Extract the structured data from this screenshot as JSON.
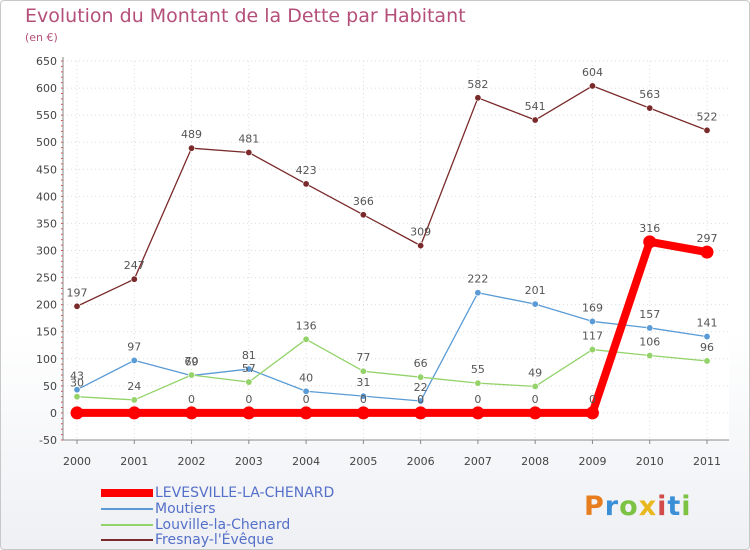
{
  "title": "Evolution du Montant de la Dette par Habitant",
  "unit_label": "(en €)",
  "logo_text": "Proxiti",
  "logo_colors": [
    "#e87d1e",
    "#3b8fd6",
    "#7cc243",
    "#e8b81e",
    "#d14b4b",
    "#3b8fd6",
    "#7cc243"
  ],
  "chart_data": {
    "type": "line",
    "title": "Evolution du Montant de la Dette par Habitant",
    "ylabel": "(en €)",
    "x": [
      "2000",
      "2001",
      "2002",
      "2003",
      "2004",
      "2005",
      "2006",
      "2007",
      "2008",
      "2009",
      "2010",
      "2011"
    ],
    "ylim": [
      -50,
      650
    ],
    "yticks": [
      -50,
      0,
      50,
      100,
      150,
      200,
      250,
      300,
      350,
      400,
      450,
      500,
      550,
      600,
      650
    ],
    "grid": true,
    "legend_position": "bottom-left",
    "series": [
      {
        "name": "LEVESVILLE-LA-CHENARD",
        "color": "#ff0000",
        "emphasis": true,
        "values": [
          0,
          0,
          0,
          0,
          0,
          0,
          0,
          0,
          0,
          0,
          316,
          297
        ],
        "labels": [
          "",
          "",
          "0",
          "0",
          "0",
          "0",
          "0",
          "0",
          "0",
          "0",
          "316",
          "297"
        ]
      },
      {
        "name": "Moutiers",
        "color": "#5a9bd5",
        "emphasis": false,
        "values": [
          43,
          97,
          69,
          81,
          40,
          31,
          22,
          222,
          201,
          169,
          157,
          141
        ],
        "labels": [
          "43",
          "97",
          "69",
          "81",
          "40",
          "31",
          "22",
          "222",
          "201",
          "169",
          "157",
          "141"
        ]
      },
      {
        "name": "Louville-la-Chenard",
        "color": "#93d36a",
        "emphasis": false,
        "values": [
          30,
          24,
          70,
          57,
          136,
          77,
          66,
          55,
          49,
          117,
          106,
          96
        ],
        "labels": [
          "30",
          "24",
          "70",
          "57",
          "136",
          "77",
          "66",
          "55",
          "49",
          "117",
          "106",
          "96"
        ]
      },
      {
        "name": "Fresnay-l'Évêque",
        "color": "#7a2a2a",
        "emphasis": false,
        "values": [
          197,
          247,
          489,
          481,
          423,
          366,
          309,
          582,
          541,
          604,
          563,
          522
        ],
        "labels": [
          "197",
          "247",
          "489",
          "481",
          "423",
          "366",
          "309",
          "582",
          "541",
          "604",
          "563",
          "522"
        ]
      }
    ]
  }
}
